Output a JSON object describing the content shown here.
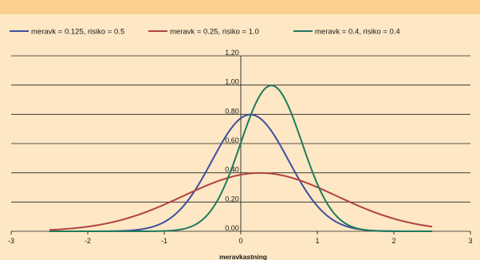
{
  "chart_data": {
    "type": "line",
    "title": "",
    "xlabel": "meravkastning",
    "ylabel": "",
    "xlim": [
      -3,
      3
    ],
    "ylim": [
      0,
      1.2
    ],
    "x_ticks": [
      "-3",
      "-2",
      "-1",
      "0",
      "1",
      "2",
      "3"
    ],
    "y_ticks": [
      "0,00",
      "0,20",
      "0,40",
      "0,60",
      "0,80",
      "1,00",
      "1,20"
    ],
    "grid": "horizontal",
    "legend_position": "top",
    "x_range": [
      -2.5,
      2.5
    ],
    "series": [
      {
        "name": "meravk = 0.125, risiko = 0.5",
        "mean": 0.125,
        "sd": 0.5,
        "color": "#3d4f9e"
      },
      {
        "name": "meravk = 0.25, risiko = 1.0",
        "mean": 0.25,
        "sd": 1.0,
        "color": "#b2423f"
      },
      {
        "name": "meravk = 0.4, risiko = 0.4",
        "mean": 0.4,
        "sd": 0.4,
        "color": "#1e7b5c"
      }
    ]
  },
  "colors": {
    "background": "#fde7c4",
    "header_band": "#fbd08e",
    "grid": "#222222",
    "axis": "#222222"
  }
}
